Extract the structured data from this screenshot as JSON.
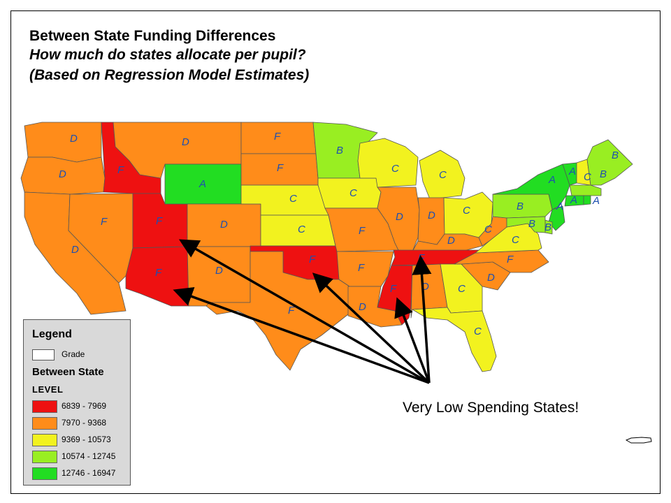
{
  "title": {
    "line1": "Between State Funding Differences",
    "line2": "How much do states allocate per pupil?",
    "line3": "(Based on Regression Model Estimates)"
  },
  "legend": {
    "title": "Legend",
    "grade_label": "Grade",
    "layer_title": "Between State",
    "field_title": "LEVEL",
    "classes": [
      {
        "range": "6839 - 7969",
        "color": "#ee1111"
      },
      {
        "range": "7970 - 9368",
        "color": "#ff8c1a"
      },
      {
        "range": "9369 - 10573",
        "color": "#f2f21f"
      },
      {
        "range": "10574 - 12745",
        "color": "#99ee22"
      },
      {
        "range": "12746 - 16947",
        "color": "#22dd22"
      }
    ]
  },
  "callout": "Very Low Spending States!",
  "states": [
    {
      "name": "Washington",
      "grade": "D"
    },
    {
      "name": "Oregon",
      "grade": "D"
    },
    {
      "name": "California",
      "grade": "D"
    },
    {
      "name": "Idaho",
      "grade": "F"
    },
    {
      "name": "Nevada",
      "grade": "F"
    },
    {
      "name": "Utah",
      "grade": "F"
    },
    {
      "name": "Arizona",
      "grade": "F"
    },
    {
      "name": "Montana",
      "grade": "D"
    },
    {
      "name": "Wyoming",
      "grade": "A"
    },
    {
      "name": "Colorado",
      "grade": "D"
    },
    {
      "name": "New Mexico",
      "grade": "D"
    },
    {
      "name": "North Dakota",
      "grade": "F"
    },
    {
      "name": "South Dakota",
      "grade": "F"
    },
    {
      "name": "Nebraska",
      "grade": "C"
    },
    {
      "name": "Kansas",
      "grade": "C"
    },
    {
      "name": "Oklahoma",
      "grade": "F"
    },
    {
      "name": "Texas",
      "grade": "F"
    },
    {
      "name": "Minnesota",
      "grade": "B"
    },
    {
      "name": "Iowa",
      "grade": "C"
    },
    {
      "name": "Missouri",
      "grade": "F"
    },
    {
      "name": "Arkansas",
      "grade": "F"
    },
    {
      "name": "Louisiana",
      "grade": "D"
    },
    {
      "name": "Wisconsin",
      "grade": "C"
    },
    {
      "name": "Illinois",
      "grade": "D"
    },
    {
      "name": "Michigan",
      "grade": "C"
    },
    {
      "name": "Indiana",
      "grade": "D"
    },
    {
      "name": "Ohio",
      "grade": "C"
    },
    {
      "name": "Kentucky",
      "grade": "D"
    },
    {
      "name": "Tennessee",
      "grade": "F"
    },
    {
      "name": "Mississippi",
      "grade": "F"
    },
    {
      "name": "Alabama",
      "grade": "D"
    },
    {
      "name": "Georgia",
      "grade": "C"
    },
    {
      "name": "Florida",
      "grade": "C"
    },
    {
      "name": "South Carolina",
      "grade": "D"
    },
    {
      "name": "North Carolina",
      "grade": "F"
    },
    {
      "name": "Virginia",
      "grade": "C"
    },
    {
      "name": "West Virginia",
      "grade": "C"
    },
    {
      "name": "Pennsylvania",
      "grade": "B"
    },
    {
      "name": "New York",
      "grade": "A"
    },
    {
      "name": "Vermont",
      "grade": "A"
    },
    {
      "name": "New Hampshire",
      "grade": "C"
    },
    {
      "name": "Maine",
      "grade": "B"
    },
    {
      "name": "Massachusetts",
      "grade": "B"
    },
    {
      "name": "Connecticut",
      "grade": "A"
    },
    {
      "name": "Rhode Island",
      "grade": "A"
    },
    {
      "name": "New Jersey",
      "grade": "A"
    },
    {
      "name": "Delaware",
      "grade": "B"
    },
    {
      "name": "Maryland",
      "grade": "B"
    }
  ],
  "colors": {
    "red": "#ee1111",
    "orange": "#ff8c1a",
    "yellow": "#f2f21f",
    "light_green": "#99ee22",
    "green": "#22dd22",
    "grade_text": "#1e4fb0"
  }
}
